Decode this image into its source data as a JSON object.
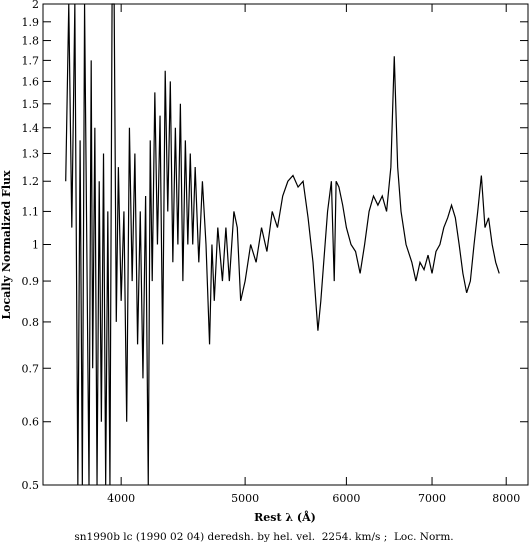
{
  "chart_data": {
    "type": "line",
    "title": "sn1990b lc (1990 02 04) deredsh. by hel. vel.  2254. km/s ;  Loc. Norm.",
    "x_label": "Rest λ (Å)",
    "y_label": "Locally Normalized Flux",
    "x_log": true,
    "y_log": true,
    "xlim": [
      3475,
      8320
    ],
    "ylim": [
      0.5,
      2
    ],
    "xticks": [
      4000,
      5000,
      6000,
      7000,
      8000
    ],
    "yticks": [
      0.5,
      0.6,
      0.7,
      0.8,
      0.9,
      1,
      1.1,
      1.2,
      1.3,
      1.4,
      1.5,
      1.6,
      1.7,
      1.8,
      1.9,
      2
    ],
    "series": [
      {
        "color": "#000000",
        "x": [
          3620,
          3640,
          3660,
          3680,
          3700,
          3715,
          3730,
          3745,
          3760,
          3775,
          3790,
          3800,
          3815,
          3830,
          3845,
          3860,
          3875,
          3890,
          3905,
          3920,
          3935,
          3950,
          3965,
          3980,
          4000,
          4020,
          4040,
          4060,
          4080,
          4100,
          4120,
          4140,
          4160,
          4180,
          4200,
          4215,
          4230,
          4250,
          4270,
          4290,
          4310,
          4330,
          4350,
          4370,
          4390,
          4410,
          4430,
          4450,
          4470,
          4490,
          4510,
          4530,
          4550,
          4570,
          4600,
          4630,
          4660,
          4690,
          4710,
          4730,
          4760,
          4800,
          4830,
          4860,
          4900,
          4930,
          4960,
          5000,
          5050,
          5100,
          5150,
          5200,
          5250,
          5300,
          5350,
          5400,
          5450,
          5500,
          5550,
          5600,
          5650,
          5700,
          5730,
          5760,
          5800,
          5840,
          5870,
          5890,
          5920,
          5960,
          6000,
          6050,
          6100,
          6150,
          6200,
          6250,
          6300,
          6350,
          6400,
          6450,
          6500,
          6540,
          6580,
          6620,
          6680,
          6750,
          6800,
          6850,
          6900,
          6950,
          7000,
          7050,
          7100,
          7150,
          7200,
          7250,
          7300,
          7350,
          7400,
          7450,
          7500,
          7550,
          7600,
          7650,
          7700,
          7750,
          7800,
          7850,
          7900
        ],
        "values": [
          1.2,
          2.0,
          1.05,
          2.0,
          0.5,
          1.35,
          0.5,
          2.0,
          1.0,
          0.5,
          1.7,
          0.7,
          1.4,
          0.5,
          1.2,
          0.6,
          1.3,
          0.5,
          1.1,
          0.5,
          2.0,
          2.0,
          0.8,
          1.25,
          0.85,
          1.1,
          0.6,
          1.4,
          0.9,
          1.3,
          0.75,
          1.1,
          0.68,
          1.15,
          0.5,
          1.35,
          0.9,
          1.55,
          1.0,
          1.45,
          0.75,
          1.65,
          1.1,
          1.6,
          0.95,
          1.4,
          1.0,
          1.5,
          0.9,
          1.35,
          1.0,
          1.3,
          1.0,
          1.25,
          0.95,
          1.2,
          1.0,
          0.75,
          1.0,
          0.85,
          1.05,
          0.9,
          1.05,
          0.9,
          1.1,
          1.05,
          0.85,
          0.9,
          1.0,
          0.95,
          1.05,
          0.98,
          1.1,
          1.05,
          1.15,
          1.2,
          1.22,
          1.18,
          1.2,
          1.08,
          0.95,
          0.78,
          0.85,
          0.95,
          1.1,
          1.2,
          0.9,
          1.2,
          1.18,
          1.12,
          1.05,
          1.0,
          0.98,
          0.92,
          1.0,
          1.1,
          1.15,
          1.12,
          1.15,
          1.1,
          1.25,
          1.72,
          1.25,
          1.1,
          1.0,
          0.95,
          0.9,
          0.95,
          0.93,
          0.97,
          0.92,
          0.98,
          1.0,
          1.05,
          1.08,
          1.12,
          1.08,
          1.0,
          0.92,
          0.87,
          0.9,
          1.0,
          1.1,
          1.22,
          1.05,
          1.08,
          1.0,
          0.95,
          0.92
        ]
      }
    ]
  }
}
